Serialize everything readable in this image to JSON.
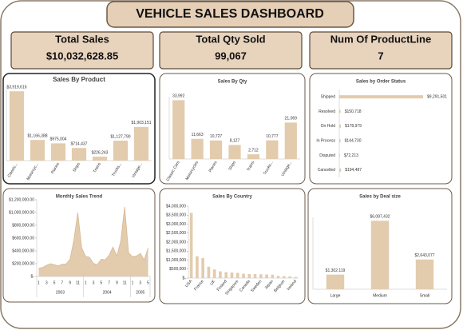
{
  "title": "VEHICLE SALES DASHBOARD",
  "kpis": [
    {
      "label": "Total Sales",
      "value": "$10,032,628.85"
    },
    {
      "label": "Total Qty Sold",
      "value": "99,067"
    },
    {
      "label": "Num Of ProductLine",
      "value": "7"
    }
  ],
  "chart_data": [
    {
      "type": "bar",
      "title": "Sales By Product",
      "color": "#e3cbad",
      "categories": [
        "Classic...",
        "Motorcyc...",
        "Planes",
        "Ships",
        "Trains",
        "Trucks...",
        "Vintage..."
      ],
      "values": [
        3919616,
        1166388,
        975004,
        714437,
        226243,
        1127790,
        1903151
      ],
      "value_labels": [
        "$3,919,616",
        "$1,166,388",
        "$975,004",
        "$714,437",
        "$226,243",
        "$1,127,790",
        "$1,903,151"
      ]
    },
    {
      "type": "bar",
      "title": "Sales By Qty",
      "color": "#e3cbad",
      "categories": [
        "Classic Cars",
        "Motorcycles",
        "Planes",
        "Ships",
        "Trains",
        "Trucks...",
        "Vintage..."
      ],
      "values": [
        33992,
        11663,
        10727,
        8127,
        2712,
        10777,
        21069
      ],
      "value_labels": [
        "33,992",
        "11,663",
        "10,727",
        "8,127",
        "2,712",
        "10,777",
        "21,069"
      ]
    },
    {
      "type": "barh",
      "title": "Sales by Order Status",
      "color": "#e3cbad",
      "categories": [
        "Shipped",
        "Resolved",
        "On Hold",
        "In Process",
        "Disputed",
        "Cancelled"
      ],
      "values": [
        9291501,
        150718,
        178979,
        144730,
        72213,
        194487
      ],
      "value_labels": [
        "$9,291,501",
        "$150,718",
        "$178,979",
        "$144,730",
        "$72,213",
        "$194,487"
      ]
    },
    {
      "type": "area",
      "title": "Monthly Sales Trend",
      "color": "#e3cbad",
      "categories": [
        "1",
        null,
        "3",
        null,
        "5",
        null,
        "7",
        null,
        "9",
        null,
        "11",
        null,
        "1",
        null,
        "3",
        null,
        "5",
        null,
        "7",
        null,
        "9",
        null,
        "11",
        null,
        "1",
        null,
        "3",
        null,
        "5"
      ],
      "groups": [
        "2003",
        "2004",
        "2005"
      ],
      "values": [
        130000,
        140000,
        175000,
        200000,
        185000,
        165000,
        190000,
        195000,
        265000,
        570000,
        1000000,
        450000,
        315000,
        300000,
        205000,
        185000,
        270000,
        260000,
        330000,
        460000,
        320000,
        555000,
        1090000,
        370000,
        310000,
        320000,
        360000,
        260000,
        450000
      ],
      "ylim": [
        0,
        1200000
      ],
      "yticks": [
        {
          "value": 0,
          "label": "$-"
        },
        {
          "value": 200000,
          "label": "$200,000.00"
        },
        {
          "value": 400000,
          "label": "$400,000.00"
        },
        {
          "value": 600000,
          "label": "$600,000.00"
        },
        {
          "value": 800000,
          "label": "$800,000.00"
        },
        {
          "value": 1000000,
          "label": "$1,000,000.00"
        },
        {
          "value": 1200000,
          "label": "$1,200,000.00"
        }
      ]
    },
    {
      "type": "bar",
      "title": "Sales By Country",
      "color": "#e3cbad",
      "categories": [
        "USA",
        null,
        "France",
        null,
        "UK",
        null,
        "Finland",
        null,
        "Singapore",
        null,
        "Canada",
        null,
        "Sweden",
        null,
        "Japan",
        null,
        "Belgium",
        null,
        "Ireland"
      ],
      "values": [
        3627983,
        1215687,
        1110917,
        630623,
        478880,
        374674,
        329582,
        307464,
        288488,
        245637,
        224079,
        220472,
        210014,
        202063,
        188168,
        117714,
        108413,
        94016,
        57756
      ],
      "ylim": [
        0,
        4000000
      ],
      "yticks": [
        {
          "value": 0,
          "label": "$-"
        },
        {
          "value": 500000,
          "label": "$500,000"
        },
        {
          "value": 1000000,
          "label": "$1,000,000"
        },
        {
          "value": 1500000,
          "label": "$1,500,000"
        },
        {
          "value": 2000000,
          "label": "$2,000,000"
        },
        {
          "value": 2500000,
          "label": "$2,500,000"
        },
        {
          "value": 3000000,
          "label": "$3,000,000"
        },
        {
          "value": 3500000,
          "label": "$3,500,000"
        },
        {
          "value": 4000000,
          "label": "$4,000,000"
        }
      ]
    },
    {
      "type": "bar",
      "title": "Sales by Deal size",
      "color": "#e3cbad",
      "categories": [
        "Large",
        "Medium",
        "Small"
      ],
      "values": [
        1302119,
        6087432,
        2643077
      ],
      "value_labels": [
        "$1,302,119",
        "$6,087,432",
        "$2,643,077"
      ]
    }
  ]
}
